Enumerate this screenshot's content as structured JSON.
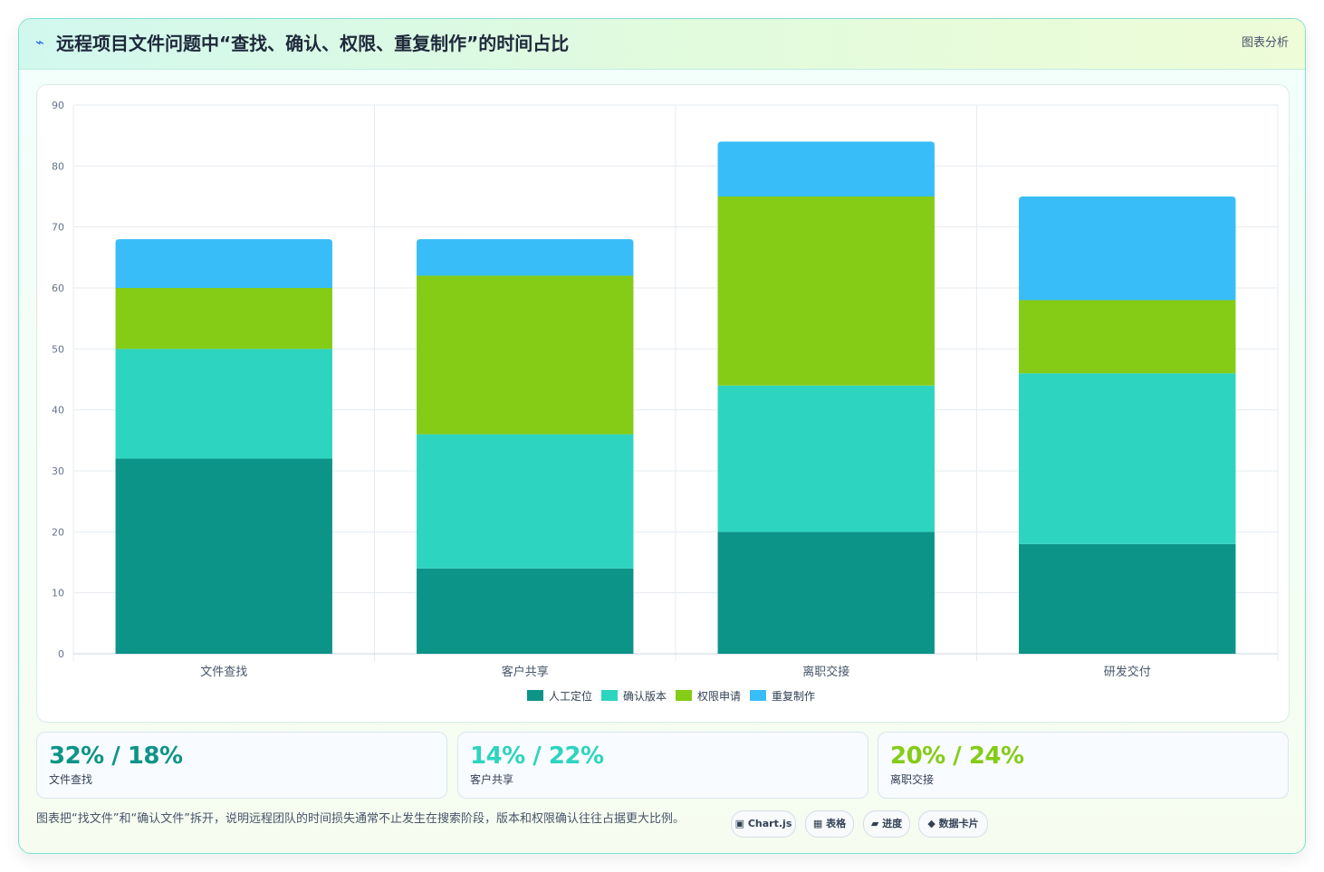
{
  "header": {
    "icon": "lightning-icon",
    "title": "远程项目文件问题中“查找、确认、权限、重复制作”的时间占比",
    "link_label": "图表分析"
  },
  "chart_data": {
    "type": "bar",
    "stacked": true,
    "categories": [
      "文件查找",
      "客户共享",
      "离职交接",
      "研发交付"
    ],
    "series": [
      {
        "name": "人工定位",
        "color": "#0d9488",
        "values": [
          32,
          14,
          20,
          18
        ]
      },
      {
        "name": "确认版本",
        "color": "#2dd4bf",
        "values": [
          18,
          22,
          24,
          28
        ]
      },
      {
        "name": "权限申请",
        "color": "#84cc16",
        "values": [
          10,
          26,
          31,
          12
        ]
      },
      {
        "name": "重复制作",
        "color": "#38bdf8",
        "values": [
          8,
          6,
          9,
          17
        ]
      }
    ],
    "ylim": [
      0,
      90
    ],
    "yticks": [
      0,
      10,
      20,
      30,
      40,
      50,
      60,
      70,
      80,
      90
    ],
    "grid": true,
    "legend": "bottom"
  },
  "stats": [
    {
      "value": "32% / 18%",
      "label": "文件查找",
      "color": "#0d9488"
    },
    {
      "value": "14% / 22%",
      "label": "客户共享",
      "color": "#2dd4bf"
    },
    {
      "value": "20% / 24%",
      "label": "离职交接",
      "color": "#84cc16"
    }
  ],
  "note": "图表把“找文件”和“确认文件”拆开，说明远程团队的时间损失通常不止发生在搜索阶段，版本和权限确认往往占据更大比例。",
  "chips": [
    {
      "icon": "▣",
      "label": "Chart.js"
    },
    {
      "icon": "▦",
      "label": "表格"
    },
    {
      "icon": "▰",
      "label": "进度"
    },
    {
      "icon": "◆",
      "label": "数据卡片"
    }
  ]
}
